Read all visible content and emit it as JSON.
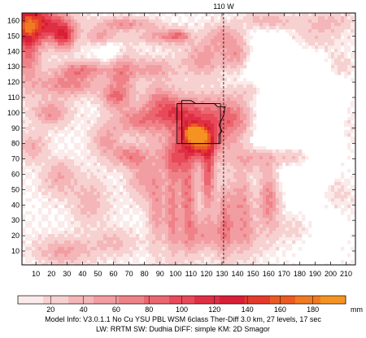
{
  "chart_data": {
    "type": "heatmap",
    "title": "",
    "xlabel": "",
    "ylabel": "",
    "x_ticks": [
      10,
      20,
      30,
      40,
      50,
      60,
      70,
      80,
      90,
      100,
      110,
      120,
      130,
      140,
      150,
      160,
      170,
      180,
      190,
      200,
      210
    ],
    "y_ticks": [
      10,
      20,
      30,
      40,
      50,
      60,
      70,
      80,
      90,
      100,
      110,
      120,
      130,
      140,
      150,
      160
    ],
    "xlim": [
      1,
      216
    ],
    "ylim": [
      1,
      165
    ],
    "meridian": {
      "label": "110 W",
      "x": 131
    },
    "colorbar": {
      "units": "mm",
      "tick_values": [
        20,
        40,
        60,
        80,
        100,
        120,
        140,
        160,
        180
      ],
      "tick_labels": [
        "20",
        "40",
        "60",
        "80",
        "100",
        "120",
        "140",
        "160",
        "180"
      ],
      "max": 200,
      "colors": [
        "#fbeaea",
        "#f7d0d0",
        "#f4b6b8",
        "#f29da1",
        "#ef8289",
        "#eb6670",
        "#e84a59",
        "#e02f45",
        "#d81f35",
        "#e53a2b",
        "#ec5a24",
        "#f07a22",
        "#f59322"
      ]
    },
    "highlight_region": {
      "polygon": [
        [
          101,
          80
        ],
        [
          101,
          106
        ],
        [
          104,
          106
        ],
        [
          104,
          108
        ],
        [
          110,
          108
        ],
        [
          113,
          106
        ],
        [
          125,
          106
        ],
        [
          127,
          104
        ],
        [
          132,
          104
        ],
        [
          131,
          98
        ],
        [
          128,
          92
        ],
        [
          130,
          88
        ],
        [
          128,
          86
        ],
        [
          128,
          80
        ]
      ],
      "box": {
        "x0": 104,
        "x1": 129,
        "y0": 80,
        "y1": 106
      }
    },
    "field": {
      "blobs": [
        [
          10,
          158,
          14,
          8,
          120
        ],
        [
          5,
          145,
          6,
          18,
          75
        ],
        [
          28,
          150,
          5,
          6,
          90
        ],
        [
          40,
          128,
          12,
          4,
          65
        ],
        [
          30,
          118,
          14,
          5,
          60
        ],
        [
          20,
          100,
          8,
          6,
          55
        ],
        [
          52,
          150,
          7,
          4,
          45
        ],
        [
          68,
          158,
          12,
          3,
          50
        ],
        [
          90,
          150,
          10,
          4,
          45
        ],
        [
          65,
          125,
          6,
          14,
          55
        ],
        [
          85,
          128,
          10,
          5,
          50
        ],
        [
          102,
          150,
          5,
          3,
          55
        ],
        [
          118,
          135,
          10,
          8,
          50
        ],
        [
          140,
          138,
          6,
          8,
          55
        ],
        [
          150,
          115,
          8,
          6,
          45
        ],
        [
          118,
          90,
          22,
          14,
          70
        ],
        [
          112,
          87,
          5,
          4,
          120
        ],
        [
          115,
          80,
          6,
          6,
          95
        ],
        [
          100,
          100,
          12,
          6,
          60
        ],
        [
          140,
          98,
          12,
          10,
          55
        ],
        [
          75,
          95,
          10,
          6,
          50
        ],
        [
          70,
          72,
          8,
          5,
          55
        ],
        [
          60,
          110,
          6,
          5,
          50
        ],
        [
          150,
          70,
          10,
          6,
          45
        ],
        [
          175,
          72,
          12,
          5,
          50
        ],
        [
          160,
          46,
          5,
          16,
          70
        ],
        [
          143,
          45,
          5,
          14,
          55
        ],
        [
          121,
          60,
          3,
          18,
          80
        ],
        [
          108,
          45,
          4,
          22,
          70
        ],
        [
          98,
          38,
          3,
          22,
          60
        ],
        [
          88,
          40,
          4,
          20,
          50
        ],
        [
          132,
          30,
          4,
          18,
          55
        ],
        [
          145,
          20,
          6,
          10,
          40
        ],
        [
          78,
          58,
          6,
          10,
          45
        ],
        [
          45,
          42,
          8,
          10,
          35
        ],
        [
          25,
          58,
          8,
          8,
          40
        ],
        [
          28,
          10,
          12,
          6,
          45
        ],
        [
          8,
          78,
          6,
          6,
          40
        ],
        [
          190,
          150,
          12,
          8,
          25
        ],
        [
          205,
          130,
          6,
          6,
          30
        ],
        [
          204,
          55,
          8,
          12,
          35
        ],
        [
          180,
          25,
          10,
          8,
          30
        ],
        [
          160,
          160,
          12,
          4,
          40
        ],
        [
          55,
          82,
          6,
          8,
          45
        ],
        [
          90,
          110,
          8,
          6,
          45
        ],
        [
          130,
          150,
          8,
          6,
          40
        ],
        [
          175,
          110,
          8,
          8,
          30
        ],
        [
          210,
          95,
          5,
          14,
          30
        ],
        [
          200,
          160,
          10,
          4,
          25
        ],
        [
          60,
          15,
          10,
          6,
          30
        ],
        [
          118,
          20,
          10,
          8,
          45
        ],
        [
          100,
          70,
          6,
          8,
          55
        ]
      ],
      "minima": [
        [
          160,
          100,
          16,
          30,
          60
        ],
        [
          195,
          100,
          12,
          20,
          60
        ],
        [
          60,
          140,
          6,
          6,
          35
        ],
        [
          175,
          125,
          8,
          8,
          30
        ],
        [
          200,
          60,
          12,
          10,
          30
        ],
        [
          190,
          25,
          12,
          12,
          25
        ]
      ]
    }
  },
  "info": {
    "line1": "Model Info: V3.0.1.1 No Cu YSU PBL WSM 6class Ther-Diff 3.0 km, 27 levels, 17 sec",
    "line2": "LW: RRTM SW: Dudhia DIFF: simple KM: 2D Smagor"
  }
}
